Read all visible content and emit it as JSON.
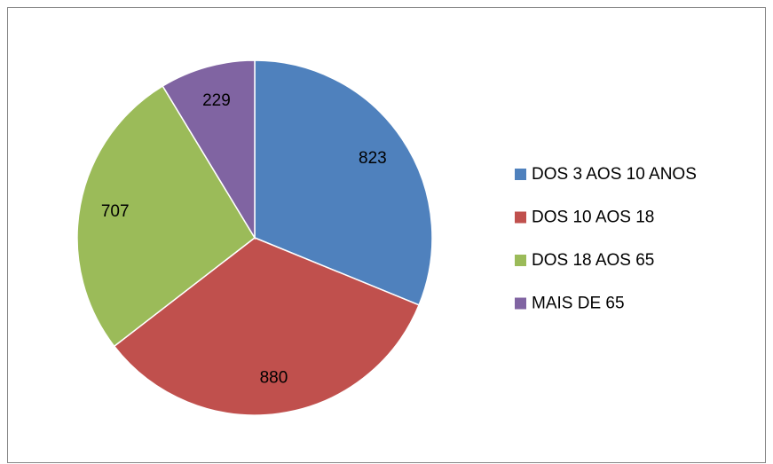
{
  "chart_data": {
    "type": "pie",
    "categories": [
      "DOS 3 AOS 10 ANOS",
      "DOS 10 AOS 18",
      "DOS 18 AOS 65",
      "MAIS DE 65"
    ],
    "values": [
      823,
      880,
      707,
      229
    ],
    "colors": [
      "#4f81bd",
      "#c0504d",
      "#9bbb59",
      "#8064a2"
    ],
    "legend": "right"
  }
}
